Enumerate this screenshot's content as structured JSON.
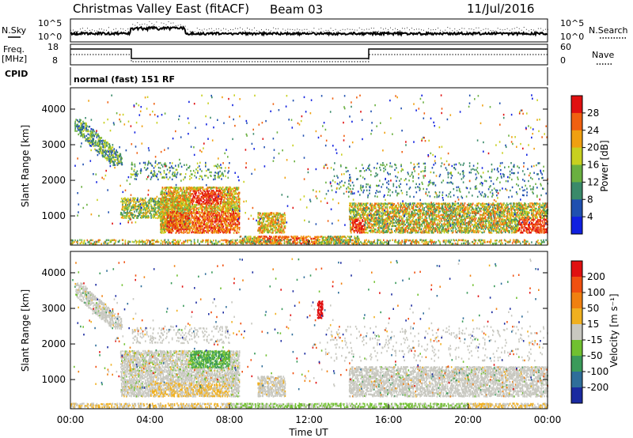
{
  "header": {
    "title": "Christmas Valley East (fitACF)",
    "beam": "Beam 03",
    "date": "11/Jul/2016"
  },
  "top_panels": {
    "nsky_label": "N.Sky",
    "nsearch_label": "N.Search",
    "noise_ticks": [
      "10^5",
      "10^0"
    ],
    "freq_label": "Freq.",
    "freq_unit": "[MHz]",
    "freq_ticks": [
      "18",
      "8"
    ],
    "nave_label": "Nave",
    "nave_ticks": [
      "60",
      "0"
    ],
    "cpid_label": "CPID",
    "cpid_text": "normal (fast) 151 RF"
  },
  "chart_data": [
    {
      "type": "heatmap",
      "name": "power",
      "ylabel": "Slant Range [km]",
      "yticks": [
        "4000",
        "3000",
        "2000",
        "1000"
      ],
      "ylim": [
        180,
        4600
      ],
      "colorbar_label": "Power [dB]",
      "colorbar_ticks": [
        "28",
        "24",
        "20",
        "16",
        "12",
        "8",
        "4"
      ],
      "colors": [
        "#1020e0",
        "#2050b0",
        "#3a8a6a",
        "#6ab040",
        "#c8d020",
        "#f0a010",
        "#f06010",
        "#e01010"
      ]
    },
    {
      "type": "heatmap",
      "name": "velocity",
      "ylabel": "Slant Range [km]",
      "yticks": [
        "4000",
        "3000",
        "2000",
        "1000"
      ],
      "ylim": [
        180,
        4600
      ],
      "xlabel": "Time UT",
      "xticks": [
        "00:00",
        "04:00",
        "08:00",
        "12:00",
        "16:00",
        "20:00",
        "00:00"
      ],
      "colorbar_label": "Velocity [m s⁻¹]",
      "colorbar_ticks": [
        "200",
        "100",
        "50",
        "15",
        "-15",
        "-50",
        "-100",
        "-200"
      ],
      "colors": [
        "#1a2aa0",
        "#2f6e9a",
        "#3a9a5a",
        "#70c030",
        "#c8c8c0",
        "#f0b020",
        "#f08010",
        "#f05010",
        "#e01010"
      ]
    }
  ]
}
